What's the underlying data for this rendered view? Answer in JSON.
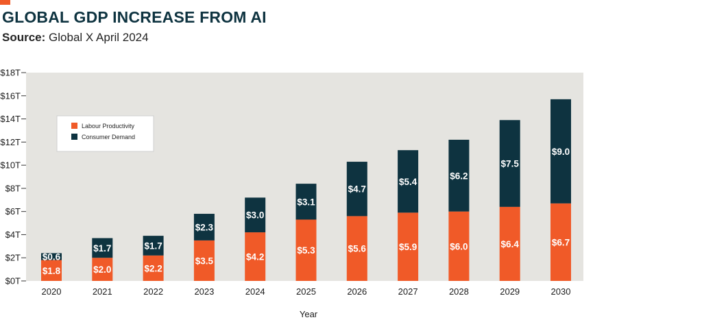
{
  "header": {
    "title": "GLOBAL GDP INCREASE FROM AI",
    "source_label": "Source:",
    "source_text": "Global X April 2024"
  },
  "colors": {
    "accent": "#f05a28",
    "labour": "#f05a28",
    "consumer": "#0e3340",
    "plot_bg": "#e5e4e0"
  },
  "chart_data": {
    "type": "bar",
    "stacked": true,
    "categories": [
      "2020",
      "2021",
      "2022",
      "2023",
      "2024",
      "2025",
      "2026",
      "2027",
      "2028",
      "2029",
      "2030"
    ],
    "series": [
      {
        "name": "Labour Productivity",
        "values": [
          1.8,
          2.0,
          2.2,
          3.5,
          4.2,
          5.3,
          5.6,
          5.9,
          6.0,
          6.4,
          6.7
        ],
        "labels": [
          "$1.8",
          "$2.0",
          "$2.2",
          "$3.5",
          "$4.2",
          "$5.3",
          "$5.6",
          "$5.9",
          "$6.0",
          "$6.4",
          "$6.7"
        ]
      },
      {
        "name": "Consumer Demand",
        "values": [
          0.6,
          1.7,
          1.7,
          2.3,
          3.0,
          3.1,
          4.7,
          5.4,
          6.2,
          7.5,
          9.0
        ],
        "labels": [
          "$0.6",
          "$1.7",
          "$1.7",
          "$2.3",
          "$3.0",
          "$3.1",
          "$4.7",
          "$5.4",
          "$6.2",
          "$7.5",
          "$9.0"
        ]
      }
    ],
    "xlabel": "Year",
    "ylabel": "",
    "ylim": [
      0,
      18
    ],
    "yticks": [
      0,
      2,
      4,
      6,
      8,
      10,
      12,
      14,
      16,
      18
    ],
    "ytick_labels": [
      "$0T",
      "$2T",
      "$4T",
      "$6T",
      "$8T",
      "$10T",
      "$12T",
      "$14T",
      "$16T",
      "$18T"
    ],
    "legend_position": "top-left",
    "grid": false
  }
}
